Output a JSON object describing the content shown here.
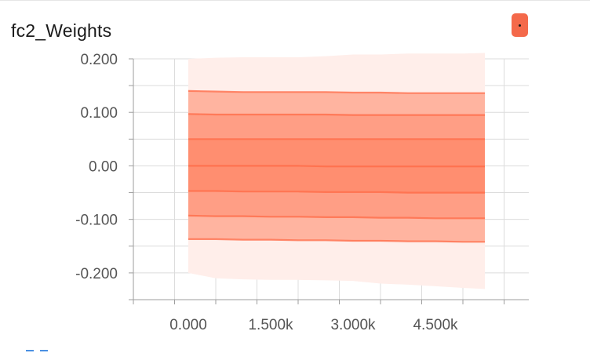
{
  "card": {
    "title": "fc2_Weights",
    "expand_button_color": "#f4694a"
  },
  "chart_data": {
    "type": "area",
    "title": "fc2_Weights",
    "xlabel": "",
    "ylabel": "",
    "color": "#ff7043",
    "x_ticks": [
      0,
      1500,
      3000,
      4500
    ],
    "x_tick_labels": [
      "0.000",
      "1.500k",
      "3.000k",
      "4.500k"
    ],
    "y_ticks": [
      0.2,
      0.1,
      0.0,
      -0.1,
      -0.2
    ],
    "y_tick_labels": [
      "0.200",
      "0.100",
      "0.00",
      "-0.100",
      "-0.200"
    ],
    "xlim": [
      -1000,
      6200
    ],
    "ylim": [
      -0.25,
      0.2
    ],
    "grid": true,
    "x": [
      0,
      500,
      1000,
      1500,
      2000,
      2500,
      3000,
      3500,
      4000,
      4500,
      5000,
      5400
    ],
    "percentile_lines": [
      {
        "name": "max",
        "values": [
          0.2,
          0.202,
          0.203,
          0.203,
          0.203,
          0.205,
          0.208,
          0.208,
          0.21,
          0.21,
          0.21,
          0.211
        ]
      },
      {
        "name": "p93",
        "values": [
          0.14,
          0.139,
          0.138,
          0.138,
          0.138,
          0.138,
          0.137,
          0.137,
          0.136,
          0.136,
          0.136,
          0.136
        ]
      },
      {
        "name": "p84",
        "values": [
          0.097,
          0.096,
          0.096,
          0.096,
          0.096,
          0.096,
          0.095,
          0.095,
          0.095,
          0.095,
          0.095,
          0.095
        ]
      },
      {
        "name": "p69",
        "values": [
          0.05,
          0.05,
          0.05,
          0.05,
          0.05,
          0.05,
          0.05,
          0.05,
          0.05,
          0.05,
          0.05,
          0.05
        ]
      },
      {
        "name": "p50",
        "values": [
          0.0,
          0.0,
          0.0,
          0.0,
          0.0,
          -0.001,
          -0.001,
          -0.001,
          -0.001,
          -0.001,
          -0.001,
          -0.001
        ]
      },
      {
        "name": "p31",
        "values": [
          -0.047,
          -0.047,
          -0.048,
          -0.048,
          -0.048,
          -0.049,
          -0.049,
          -0.049,
          -0.05,
          -0.05,
          -0.05,
          -0.05
        ]
      },
      {
        "name": "p16",
        "values": [
          -0.093,
          -0.094,
          -0.094,
          -0.095,
          -0.095,
          -0.096,
          -0.096,
          -0.097,
          -0.097,
          -0.098,
          -0.098,
          -0.098
        ]
      },
      {
        "name": "p7",
        "values": [
          -0.137,
          -0.137,
          -0.138,
          -0.138,
          -0.139,
          -0.139,
          -0.14,
          -0.14,
          -0.141,
          -0.141,
          -0.142,
          -0.142
        ]
      },
      {
        "name": "min",
        "values": [
          -0.2,
          -0.21,
          -0.212,
          -0.213,
          -0.213,
          -0.214,
          -0.215,
          -0.22,
          -0.222,
          -0.225,
          -0.228,
          -0.23
        ]
      }
    ],
    "band_colors": [
      "#ffeeea",
      "#ffb4a0",
      "#ff9e85",
      "#ff8e70"
    ],
    "line_color": "#ff6a45"
  }
}
